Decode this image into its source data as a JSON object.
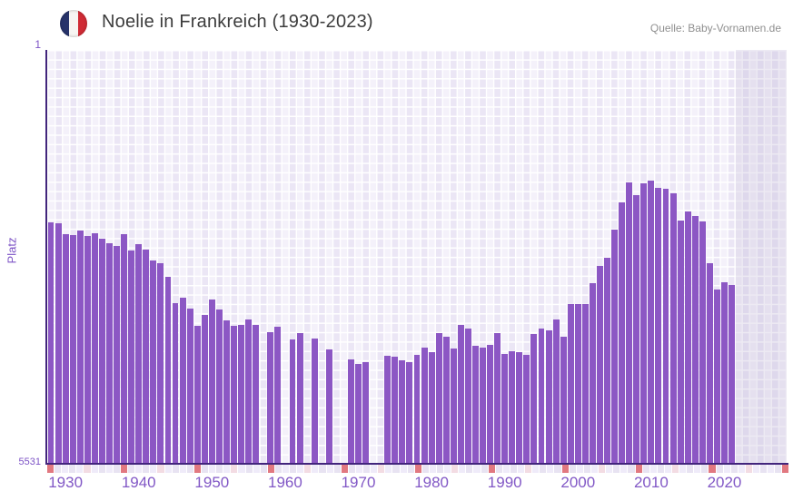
{
  "header": {
    "title": "Noelie in Frankreich (1930-2023)",
    "source": "Quelle: Baby-Vornamen.de",
    "flag": "french-flag-icon"
  },
  "chart_data": {
    "type": "bar",
    "title": "Noelie in Frankreich (1930-2023)",
    "xlabel": "",
    "ylabel": "Platz",
    "legend": "none",
    "grid": "on",
    "y_axis": {
      "min": 1,
      "max": 5531,
      "inverted": true,
      "top_tick": "1",
      "bottom_tick": "5531"
    },
    "x_axis": {
      "first_data_year": 1930,
      "last_data_year": 2023,
      "axis_last_year": 2030,
      "tick_labels": [
        "1930",
        "1940",
        "1950",
        "1960",
        "1970",
        "1980",
        "1990",
        "2000",
        "2010",
        "2020"
      ]
    },
    "missing_years": [
      1959,
      1962,
      1965,
      1967,
      1969,
      1970,
      1974,
      1975
    ],
    "years": [
      1930,
      1931,
      1932,
      1933,
      1934,
      1935,
      1936,
      1937,
      1938,
      1939,
      1940,
      1941,
      1942,
      1943,
      1944,
      1945,
      1946,
      1947,
      1948,
      1949,
      1950,
      1951,
      1952,
      1953,
      1954,
      1955,
      1956,
      1957,
      1958,
      1959,
      1960,
      1961,
      1962,
      1963,
      1964,
      1965,
      1966,
      1967,
      1968,
      1969,
      1970,
      1971,
      1972,
      1973,
      1974,
      1975,
      1976,
      1977,
      1978,
      1979,
      1980,
      1981,
      1982,
      1983,
      1984,
      1985,
      1986,
      1987,
      1988,
      1989,
      1990,
      1991,
      1992,
      1993,
      1994,
      1995,
      1996,
      1997,
      1998,
      1999,
      2000,
      2001,
      2002,
      2003,
      2004,
      2005,
      2006,
      2007,
      2008,
      2009,
      2010,
      2011,
      2012,
      2013,
      2014,
      2015,
      2016,
      2017,
      2018,
      2019,
      2020,
      2021,
      2022,
      2023
    ],
    "ranks": [
      2305,
      2317,
      2463,
      2475,
      2414,
      2487,
      2451,
      2523,
      2584,
      2620,
      2463,
      2681,
      2596,
      2669,
      2826,
      2851,
      3045,
      3396,
      3324,
      3469,
      3699,
      3554,
      3348,
      3481,
      3627,
      3699,
      3687,
      3614,
      3687,
      null,
      3784,
      3711,
      null,
      3881,
      3796,
      null,
      3869,
      null,
      4014,
      null,
      null,
      4148,
      4208,
      4184,
      null,
      null,
      4099,
      4111,
      4160,
      4184,
      4087,
      3990,
      4051,
      3796,
      3845,
      4002,
      3687,
      3735,
      3966,
      3990,
      3954,
      3796,
      4075,
      4038,
      4051,
      4087,
      3808,
      3735,
      3760,
      3614,
      3845,
      3408,
      3408,
      3408,
      3129,
      2899,
      2790,
      2402,
      2038,
      1771,
      1941,
      1783,
      1747,
      1844,
      1856,
      1917,
      2281,
      2159,
      2220,
      2293,
      2851,
      3214,
      3117,
      3154
    ],
    "colors": {
      "bar": "#8c57c4",
      "axis_line": "#42257c",
      "label_purple": "#7d53c6",
      "plot_background": "#ebe6f5",
      "grid_line": "#ffffff"
    },
    "strip": {
      "decade_color": "#e17880",
      "half_decade_color": "#f3dce3",
      "cell_colors": [
        "#efebf9",
        "#e8e3f2"
      ]
    }
  }
}
